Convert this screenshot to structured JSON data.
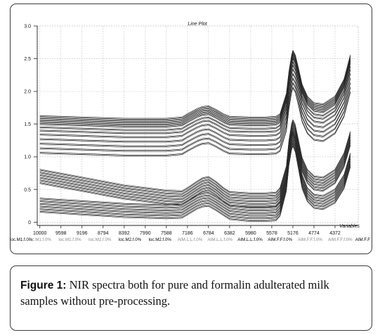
{
  "figure": {
    "caption_label": "Figure 1:",
    "caption_text": "NIR spectra both for pure and formalin adulterated milk samples without pre-processing."
  },
  "chart_data": {
    "type": "line",
    "title": "Line Plot",
    "xlabel": "Variables",
    "ylabel": "",
    "x_reversed": true,
    "xlim": [
      10050,
      3930
    ],
    "ylim": [
      -0.05,
      3.0
    ],
    "grid": true,
    "x_ticks": [
      "10000",
      "9598",
      "9196",
      "8794",
      "8392",
      "7990",
      "7588",
      "7186",
      "6784",
      "6382",
      "5980",
      "5578",
      "5176",
      "4774",
      "4372"
    ],
    "y_ticks": [
      "0",
      "0.5",
      "1.0",
      "1.5",
      "2.0",
      "2.5",
      "3.0"
    ],
    "case_labels": [
      {
        "text": "loc.M1.f.0%",
        "color": "#000000"
      },
      {
        "text": "loc.M1.f.0%",
        "color": "#888888"
      },
      {
        "text": "loc.M1.f.0%",
        "color": "#888888"
      },
      {
        "text": "loc.M2.f.0%",
        "color": "#888888"
      },
      {
        "text": "loc.M2.f.0%",
        "color": "#000000"
      },
      {
        "text": "loc.M2.f.0%",
        "color": "#000000"
      },
      {
        "text": "AIM.L.L.f.0%",
        "color": "#888888"
      },
      {
        "text": "AIM.L.L.f.0%",
        "color": "#888888"
      },
      {
        "text": "AIM.L.L.f.0%",
        "color": "#000000"
      },
      {
        "text": "AIM.F.F.f.0%",
        "color": "#000000"
      },
      {
        "text": "AIM.F.F.f.0%",
        "color": "#888888"
      },
      {
        "text": "AIM.F.F.f.0%",
        "color": "#888888"
      },
      {
        "text": "AIM.F.F",
        "color": "#000000"
      }
    ],
    "x": [
      10000,
      9598,
      9196,
      8794,
      8392,
      7990,
      7588,
      7290,
      7186,
      7000,
      6900,
      6784,
      6650,
      6500,
      6382,
      6000,
      5700,
      5500,
      5420,
      5300,
      5250,
      5200,
      5176,
      5130,
      5070,
      5000,
      4900,
      4774,
      4600,
      4372,
      4200,
      4080
    ],
    "series": [
      {
        "values": [
          1.62,
          1.61,
          1.6,
          1.59,
          1.58,
          1.58,
          1.58,
          1.6,
          1.65,
          1.73,
          1.76,
          1.77,
          1.72,
          1.65,
          1.61,
          1.6,
          1.6,
          1.61,
          1.65,
          1.96,
          2.3,
          2.55,
          2.62,
          2.55,
          2.35,
          2.1,
          1.92,
          1.82,
          1.8,
          1.92,
          2.18,
          2.55
        ]
      },
      {
        "values": [
          1.59,
          1.58,
          1.57,
          1.56,
          1.55,
          1.55,
          1.55,
          1.57,
          1.62,
          1.7,
          1.73,
          1.74,
          1.69,
          1.62,
          1.58,
          1.57,
          1.57,
          1.58,
          1.62,
          1.93,
          2.27,
          2.52,
          2.59,
          2.52,
          2.32,
          2.07,
          1.89,
          1.79,
          1.77,
          1.89,
          2.15,
          2.52
        ]
      },
      {
        "values": [
          1.56,
          1.55,
          1.54,
          1.53,
          1.52,
          1.52,
          1.52,
          1.54,
          1.59,
          1.67,
          1.7,
          1.71,
          1.66,
          1.59,
          1.55,
          1.54,
          1.54,
          1.55,
          1.59,
          1.9,
          2.24,
          2.49,
          2.56,
          2.49,
          2.29,
          2.04,
          1.86,
          1.76,
          1.74,
          1.86,
          2.12,
          2.49
        ]
      },
      {
        "values": [
          1.53,
          1.52,
          1.51,
          1.5,
          1.49,
          1.49,
          1.49,
          1.51,
          1.56,
          1.64,
          1.67,
          1.68,
          1.63,
          1.56,
          1.52,
          1.51,
          1.51,
          1.52,
          1.56,
          1.87,
          2.21,
          2.46,
          2.53,
          2.46,
          2.26,
          2.01,
          1.83,
          1.73,
          1.71,
          1.83,
          2.09,
          2.46
        ]
      },
      {
        "values": [
          1.5,
          1.49,
          1.48,
          1.47,
          1.46,
          1.46,
          1.46,
          1.48,
          1.53,
          1.61,
          1.64,
          1.65,
          1.6,
          1.53,
          1.49,
          1.48,
          1.48,
          1.49,
          1.53,
          1.84,
          2.18,
          2.43,
          2.5,
          2.43,
          2.23,
          1.98,
          1.8,
          1.7,
          1.68,
          1.8,
          2.06,
          2.43
        ]
      },
      {
        "values": [
          1.45,
          1.44,
          1.43,
          1.42,
          1.41,
          1.41,
          1.41,
          1.43,
          1.48,
          1.56,
          1.59,
          1.6,
          1.55,
          1.48,
          1.44,
          1.43,
          1.43,
          1.44,
          1.48,
          1.79,
          2.13,
          2.38,
          2.45,
          2.38,
          2.18,
          1.93,
          1.75,
          1.65,
          1.63,
          1.75,
          2.01,
          2.38
        ]
      },
      {
        "values": [
          1.4,
          1.39,
          1.38,
          1.37,
          1.36,
          1.36,
          1.36,
          1.38,
          1.43,
          1.51,
          1.54,
          1.55,
          1.5,
          1.43,
          1.39,
          1.38,
          1.38,
          1.39,
          1.43,
          1.74,
          2.08,
          2.33,
          2.4,
          2.33,
          2.13,
          1.88,
          1.7,
          1.6,
          1.58,
          1.7,
          1.96,
          2.33
        ]
      },
      {
        "values": [
          1.34,
          1.33,
          1.32,
          1.31,
          1.3,
          1.3,
          1.3,
          1.32,
          1.37,
          1.45,
          1.48,
          1.49,
          1.44,
          1.37,
          1.33,
          1.32,
          1.32,
          1.33,
          1.37,
          1.68,
          2.02,
          2.27,
          2.34,
          2.27,
          2.07,
          1.82,
          1.64,
          1.54,
          1.52,
          1.64,
          1.9,
          2.27
        ]
      },
      {
        "values": [
          1.27,
          1.26,
          1.25,
          1.24,
          1.23,
          1.23,
          1.23,
          1.25,
          1.3,
          1.38,
          1.41,
          1.42,
          1.37,
          1.3,
          1.26,
          1.25,
          1.25,
          1.26,
          1.3,
          1.61,
          1.95,
          2.2,
          2.27,
          2.2,
          2.0,
          1.75,
          1.57,
          1.47,
          1.45,
          1.57,
          1.83,
          2.2
        ]
      },
      {
        "values": [
          1.2,
          1.19,
          1.18,
          1.17,
          1.16,
          1.16,
          1.16,
          1.18,
          1.23,
          1.31,
          1.34,
          1.35,
          1.3,
          1.23,
          1.19,
          1.18,
          1.18,
          1.19,
          1.23,
          1.54,
          1.88,
          2.13,
          2.2,
          2.13,
          1.93,
          1.68,
          1.5,
          1.4,
          1.38,
          1.5,
          1.76,
          2.13
        ]
      },
      {
        "values": [
          1.13,
          1.12,
          1.11,
          1.1,
          1.09,
          1.09,
          1.09,
          1.11,
          1.16,
          1.24,
          1.27,
          1.28,
          1.23,
          1.16,
          1.12,
          1.11,
          1.11,
          1.12,
          1.16,
          1.47,
          1.81,
          2.06,
          2.13,
          2.06,
          1.86,
          1.61,
          1.43,
          1.33,
          1.31,
          1.43,
          1.69,
          2.06
        ]
      },
      {
        "values": [
          1.06,
          1.05,
          1.04,
          1.03,
          1.02,
          1.02,
          1.02,
          1.04,
          1.09,
          1.17,
          1.2,
          1.21,
          1.16,
          1.09,
          1.05,
          1.04,
          1.04,
          1.05,
          1.09,
          1.4,
          1.74,
          1.99,
          2.06,
          1.99,
          1.79,
          1.54,
          1.36,
          1.26,
          1.24,
          1.36,
          1.62,
          1.99
        ]
      },
      {
        "values": [
          0.8,
          0.74,
          0.68,
          0.62,
          0.56,
          0.52,
          0.48,
          0.47,
          0.52,
          0.62,
          0.67,
          0.69,
          0.62,
          0.52,
          0.46,
          0.44,
          0.44,
          0.45,
          0.52,
          0.85,
          1.25,
          1.5,
          1.56,
          1.48,
          1.25,
          0.98,
          0.8,
          0.7,
          0.68,
          0.8,
          1.05,
          1.38
        ]
      },
      {
        "values": [
          0.76,
          0.7,
          0.64,
          0.58,
          0.52,
          0.48,
          0.44,
          0.43,
          0.48,
          0.58,
          0.63,
          0.65,
          0.58,
          0.48,
          0.42,
          0.4,
          0.4,
          0.41,
          0.48,
          0.81,
          1.21,
          1.46,
          1.52,
          1.44,
          1.21,
          0.94,
          0.76,
          0.66,
          0.64,
          0.76,
          1.01,
          1.34
        ]
      },
      {
        "values": [
          0.72,
          0.66,
          0.6,
          0.54,
          0.48,
          0.44,
          0.4,
          0.39,
          0.44,
          0.54,
          0.59,
          0.61,
          0.54,
          0.44,
          0.38,
          0.36,
          0.36,
          0.37,
          0.44,
          0.77,
          1.17,
          1.42,
          1.48,
          1.4,
          1.17,
          0.9,
          0.72,
          0.62,
          0.6,
          0.72,
          0.97,
          1.3
        ]
      },
      {
        "values": [
          0.68,
          0.62,
          0.56,
          0.5,
          0.44,
          0.4,
          0.36,
          0.35,
          0.4,
          0.5,
          0.55,
          0.57,
          0.5,
          0.4,
          0.34,
          0.32,
          0.32,
          0.33,
          0.4,
          0.73,
          1.13,
          1.38,
          1.44,
          1.36,
          1.13,
          0.86,
          0.68,
          0.58,
          0.56,
          0.68,
          0.93,
          1.26
        ]
      },
      {
        "values": [
          0.64,
          0.58,
          0.52,
          0.46,
          0.4,
          0.36,
          0.32,
          0.31,
          0.36,
          0.46,
          0.51,
          0.53,
          0.46,
          0.36,
          0.3,
          0.28,
          0.28,
          0.29,
          0.36,
          0.69,
          1.09,
          1.34,
          1.4,
          1.32,
          1.09,
          0.82,
          0.64,
          0.54,
          0.52,
          0.64,
          0.89,
          1.22
        ]
      },
      {
        "values": [
          0.6,
          0.54,
          0.48,
          0.42,
          0.36,
          0.32,
          0.28,
          0.27,
          0.32,
          0.42,
          0.47,
          0.49,
          0.42,
          0.32,
          0.26,
          0.24,
          0.24,
          0.25,
          0.32,
          0.65,
          1.05,
          1.3,
          1.36,
          1.28,
          1.05,
          0.78,
          0.6,
          0.5,
          0.48,
          0.6,
          0.85,
          1.18
        ]
      },
      {
        "values": [
          0.36,
          0.34,
          0.32,
          0.3,
          0.28,
          0.27,
          0.26,
          0.27,
          0.32,
          0.41,
          0.44,
          0.45,
          0.39,
          0.31,
          0.25,
          0.22,
          0.22,
          0.23,
          0.3,
          0.68,
          1.08,
          1.32,
          1.37,
          1.28,
          1.02,
          0.72,
          0.52,
          0.42,
          0.4,
          0.5,
          0.72,
          1.05
        ]
      },
      {
        "values": [
          0.32,
          0.3,
          0.28,
          0.26,
          0.24,
          0.23,
          0.22,
          0.23,
          0.28,
          0.37,
          0.4,
          0.41,
          0.35,
          0.27,
          0.21,
          0.18,
          0.18,
          0.19,
          0.26,
          0.64,
          1.04,
          1.28,
          1.33,
          1.24,
          0.98,
          0.68,
          0.48,
          0.38,
          0.36,
          0.46,
          0.68,
          1.01
        ]
      },
      {
        "values": [
          0.28,
          0.26,
          0.24,
          0.22,
          0.2,
          0.19,
          0.18,
          0.19,
          0.24,
          0.33,
          0.36,
          0.37,
          0.31,
          0.23,
          0.17,
          0.14,
          0.14,
          0.15,
          0.22,
          0.6,
          1.0,
          1.24,
          1.29,
          1.2,
          0.94,
          0.64,
          0.44,
          0.34,
          0.32,
          0.42,
          0.64,
          0.97
        ]
      },
      {
        "values": [
          0.24,
          0.22,
          0.2,
          0.18,
          0.16,
          0.15,
          0.14,
          0.15,
          0.2,
          0.29,
          0.32,
          0.33,
          0.27,
          0.19,
          0.13,
          0.1,
          0.1,
          0.11,
          0.18,
          0.56,
          0.96,
          1.2,
          1.25,
          1.16,
          0.9,
          0.6,
          0.4,
          0.3,
          0.28,
          0.38,
          0.6,
          0.93
        ]
      },
      {
        "values": [
          0.2,
          0.18,
          0.16,
          0.14,
          0.12,
          0.11,
          0.1,
          0.11,
          0.16,
          0.25,
          0.28,
          0.29,
          0.23,
          0.15,
          0.09,
          0.06,
          0.06,
          0.07,
          0.14,
          0.52,
          0.92,
          1.16,
          1.21,
          1.12,
          0.86,
          0.56,
          0.36,
          0.26,
          0.24,
          0.34,
          0.56,
          0.89
        ]
      },
      {
        "values": [
          0.16,
          0.14,
          0.12,
          0.1,
          0.08,
          0.07,
          0.06,
          0.07,
          0.12,
          0.21,
          0.24,
          0.25,
          0.19,
          0.11,
          0.05,
          0.02,
          0.02,
          0.03,
          0.1,
          0.48,
          0.88,
          1.12,
          1.17,
          1.08,
          0.82,
          0.52,
          0.32,
          0.22,
          0.2,
          0.3,
          0.52,
          0.85
        ]
      }
    ]
  }
}
